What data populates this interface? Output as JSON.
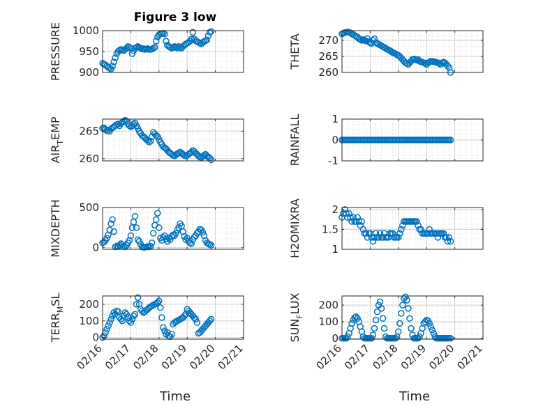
{
  "figure": {
    "title": "Figure 3 low",
    "xlabel": "Time",
    "xtick_labels": [
      "02/16",
      "02/17",
      "02/18",
      "02/19",
      "02/20",
      "02/21"
    ],
    "marker_color": "#0072BD"
  },
  "chart_data": [
    {
      "type": "scatter",
      "id": "pressure",
      "ylabel": "PRESSURE",
      "ylim": [
        900,
        1000
      ],
      "yticks": [
        900,
        950,
        1000
      ],
      "x": [
        0.0,
        0.05,
        0.1,
        0.15,
        0.2,
        0.25,
        0.3,
        0.35,
        0.4,
        0.45,
        0.5,
        0.55,
        0.6,
        0.65,
        0.7,
        0.75,
        0.8,
        0.85,
        0.9,
        0.95,
        1.0,
        1.05,
        1.1,
        1.15,
        1.2,
        1.25,
        1.3,
        1.35,
        1.4,
        1.45,
        1.5,
        1.55,
        1.6,
        1.65,
        1.7,
        1.75,
        1.8,
        1.85,
        1.9,
        1.95,
        2.0,
        2.05,
        2.1,
        2.15,
        2.2,
        2.25,
        2.3,
        2.35,
        2.4,
        2.45,
        2.5,
        2.55,
        2.6,
        2.65,
        2.7,
        2.75,
        2.8,
        2.85,
        2.9,
        2.95,
        3.0,
        3.05,
        3.1,
        3.15,
        3.2,
        3.25,
        3.3,
        3.35,
        3.4,
        3.45,
        3.5,
        3.55,
        3.6,
        3.65,
        3.7,
        3.75,
        3.8,
        3.85
      ],
      "y": [
        922,
        920,
        918,
        915,
        912,
        910,
        908,
        915,
        925,
        935,
        945,
        950,
        953,
        955,
        954,
        952,
        955,
        958,
        962,
        960,
        958,
        945,
        952,
        958,
        960,
        962,
        960,
        958,
        956,
        957,
        955,
        956,
        957,
        955,
        955,
        956,
        958,
        960,
        975,
        985,
        990,
        992,
        993,
        994,
        992,
        975,
        965,
        962,
        960,
        958,
        960,
        962,
        960,
        958,
        962,
        960,
        958,
        962,
        965,
        968,
        970,
        972,
        975,
        980,
        996,
        980,
        976,
        974,
        972,
        970,
        968,
        972,
        974,
        976,
        978,
        988,
        996,
        998
      ]
    },
    {
      "type": "scatter",
      "id": "theta",
      "ylabel": "THETA",
      "ylim": [
        260,
        273
      ],
      "yticks": [
        260,
        265,
        270
      ],
      "x": [
        0.0,
        0.05,
        0.1,
        0.15,
        0.2,
        0.25,
        0.3,
        0.35,
        0.4,
        0.45,
        0.5,
        0.55,
        0.6,
        0.65,
        0.7,
        0.75,
        0.8,
        0.85,
        0.9,
        0.95,
        1.0,
        1.05,
        1.1,
        1.15,
        1.2,
        1.25,
        1.3,
        1.35,
        1.4,
        1.45,
        1.5,
        1.55,
        1.6,
        1.65,
        1.7,
        1.75,
        1.8,
        1.85,
        1.9,
        1.95,
        2.0,
        2.05,
        2.1,
        2.15,
        2.2,
        2.25,
        2.3,
        2.35,
        2.4,
        2.45,
        2.5,
        2.55,
        2.6,
        2.65,
        2.7,
        2.75,
        2.8,
        2.85,
        2.9,
        2.95,
        3.0,
        3.05,
        3.1,
        3.15,
        3.2,
        3.25,
        3.3,
        3.35,
        3.4,
        3.45,
        3.5,
        3.55,
        3.6,
        3.65,
        3.7,
        3.75,
        3.8,
        3.85
      ],
      "y": [
        272.0,
        272.2,
        272.4,
        272.5,
        272.6,
        272.5,
        272.3,
        272.0,
        271.8,
        271.5,
        271.2,
        271.0,
        270.5,
        270.3,
        270.0,
        270.2,
        270.0,
        269.8,
        270.5,
        269.5,
        269.2,
        269.0,
        270.0,
        270.5,
        269.3,
        269.0,
        268.8,
        268.5,
        268.3,
        268.0,
        267.8,
        267.5,
        267.2,
        267.0,
        266.8,
        266.5,
        266.2,
        266.0,
        265.8,
        265.5,
        265.3,
        265.0,
        264.5,
        264.0,
        263.5,
        263.0,
        262.8,
        262.5,
        263.0,
        263.5,
        264.0,
        264.2,
        264.0,
        263.8,
        264.0,
        263.5,
        263.3,
        263.2,
        263.0,
        262.8,
        262.5,
        263.0,
        263.2,
        263.5,
        263.5,
        263.3,
        263.3,
        263.1,
        263.0,
        262.8,
        262.5,
        263.0,
        263.2,
        263.0,
        262.5,
        262.0,
        261.5,
        260.0
      ]
    },
    {
      "type": "scatter",
      "id": "air-temp",
      "ylabel_main": "AIR",
      "ylabel_sub": "T",
      "ylabel_tail": "EMP",
      "ylim": [
        259.6,
        267.2
      ],
      "yticks": [
        260,
        265
      ],
      "x": [
        0.0,
        0.05,
        0.1,
        0.15,
        0.2,
        0.25,
        0.3,
        0.35,
        0.4,
        0.45,
        0.5,
        0.55,
        0.6,
        0.65,
        0.7,
        0.75,
        0.8,
        0.85,
        0.9,
        0.95,
        1.0,
        1.05,
        1.1,
        1.15,
        1.2,
        1.25,
        1.3,
        1.35,
        1.4,
        1.45,
        1.5,
        1.55,
        1.6,
        1.65,
        1.7,
        1.75,
        1.8,
        1.85,
        1.9,
        1.95,
        2.0,
        2.05,
        2.1,
        2.15,
        2.2,
        2.25,
        2.3,
        2.35,
        2.4,
        2.45,
        2.5,
        2.55,
        2.6,
        2.65,
        2.7,
        2.75,
        2.8,
        2.85,
        2.9,
        2.95,
        3.0,
        3.05,
        3.1,
        3.15,
        3.2,
        3.25,
        3.3,
        3.35,
        3.4,
        3.45,
        3.5,
        3.55,
        3.6,
        3.65,
        3.7,
        3.75,
        3.8,
        3.85
      ],
      "y": [
        265.5,
        265.6,
        265.3,
        265.1,
        265.2,
        265.0,
        265.4,
        265.6,
        265.8,
        266.0,
        266.2,
        266.3,
        266.0,
        266.4,
        266.6,
        266.8,
        267.0,
        266.8,
        266.3,
        266.0,
        265.8,
        266.0,
        266.3,
        266.5,
        266.0,
        265.5,
        265.0,
        264.6,
        264.2,
        264.0,
        263.8,
        263.5,
        263.3,
        263.0,
        263.2,
        264.0,
        264.8,
        264.5,
        264.2,
        264.0,
        263.5,
        263.0,
        262.6,
        262.2,
        262.0,
        261.8,
        261.5,
        261.2,
        261.0,
        260.8,
        260.6,
        260.5,
        260.7,
        260.9,
        261.0,
        261.2,
        261.0,
        260.8,
        260.6,
        260.5,
        260.6,
        260.8,
        261.0,
        261.2,
        261.5,
        261.3,
        261.0,
        260.8,
        260.5,
        260.3,
        260.2,
        260.4,
        260.6,
        260.8,
        260.5,
        260.3,
        260.1,
        259.8
      ]
    },
    {
      "type": "scatter",
      "id": "rainfall",
      "ylabel": "RAINFALL",
      "ylim": [
        -1,
        1
      ],
      "yticks": [
        -1,
        0,
        1
      ],
      "x": [
        0.0,
        0.05,
        0.1,
        0.15,
        0.2,
        0.25,
        0.3,
        0.35,
        0.4,
        0.45,
        0.5,
        0.55,
        0.6,
        0.65,
        0.7,
        0.75,
        0.8,
        0.85,
        0.9,
        0.95,
        1.0,
        1.05,
        1.1,
        1.15,
        1.2,
        1.25,
        1.3,
        1.35,
        1.4,
        1.45,
        1.5,
        1.55,
        1.6,
        1.65,
        1.7,
        1.75,
        1.8,
        1.85,
        1.9,
        1.95,
        2.0,
        2.05,
        2.1,
        2.15,
        2.2,
        2.25,
        2.3,
        2.35,
        2.4,
        2.45,
        2.5,
        2.55,
        2.6,
        2.65,
        2.7,
        2.75,
        2.8,
        2.85,
        2.9,
        2.95,
        3.0,
        3.05,
        3.1,
        3.15,
        3.2,
        3.25,
        3.3,
        3.35,
        3.4,
        3.45,
        3.5,
        3.55,
        3.6,
        3.65,
        3.7,
        3.75,
        3.8,
        3.85
      ],
      "y": [
        0,
        0,
        0,
        0,
        0,
        0,
        0,
        0,
        0,
        0,
        0,
        0,
        0,
        0,
        0,
        0,
        0,
        0,
        0,
        0,
        0,
        0,
        0,
        0,
        0,
        0,
        0,
        0,
        0,
        0,
        0,
        0,
        0,
        0,
        0,
        0,
        0,
        0,
        0,
        0,
        0,
        0,
        0,
        0,
        0,
        0,
        0,
        0,
        0,
        0,
        0,
        0,
        0,
        0,
        0,
        0,
        0,
        0,
        0,
        0,
        0,
        0,
        0,
        0,
        0,
        0,
        0,
        0,
        0,
        0,
        0,
        0,
        0,
        0,
        0,
        0,
        0,
        0
      ]
    },
    {
      "type": "scatter",
      "id": "mixdepth",
      "ylabel": "MIXDEPTH",
      "ylim": [
        -20,
        500
      ],
      "yticks": [
        0,
        500
      ],
      "x": [
        0.0,
        0.05,
        0.1,
        0.15,
        0.2,
        0.25,
        0.3,
        0.35,
        0.4,
        0.45,
        0.5,
        0.55,
        0.6,
        0.65,
        0.7,
        0.75,
        0.8,
        0.85,
        0.9,
        0.95,
        1.0,
        1.05,
        1.1,
        1.15,
        1.2,
        1.25,
        1.3,
        1.35,
        1.4,
        1.45,
        1.5,
        1.55,
        1.6,
        1.65,
        1.7,
        1.75,
        1.8,
        1.85,
        1.9,
        1.95,
        2.0,
        2.05,
        2.1,
        2.15,
        2.2,
        2.25,
        2.3,
        2.35,
        2.4,
        2.45,
        2.5,
        2.55,
        2.6,
        2.65,
        2.7,
        2.75,
        2.8,
        2.85,
        2.9,
        2.95,
        3.0,
        3.05,
        3.1,
        3.15,
        3.2,
        3.25,
        3.3,
        3.35,
        3.4,
        3.45,
        3.5,
        3.55,
        3.6,
        3.65,
        3.7,
        3.75,
        3.8,
        3.85
      ],
      "y": [
        60,
        70,
        90,
        120,
        160,
        220,
        300,
        350,
        200,
        10,
        20,
        15,
        30,
        50,
        40,
        20,
        10,
        30,
        60,
        90,
        150,
        250,
        320,
        390,
        250,
        100,
        80,
        40,
        10,
        5,
        5,
        10,
        15,
        10,
        20,
        60,
        180,
        280,
        350,
        430,
        250,
        120,
        90,
        130,
        150,
        110,
        80,
        120,
        100,
        140,
        160,
        150,
        180,
        220,
        250,
        300,
        270,
        200,
        140,
        100,
        120,
        80,
        60,
        50,
        100,
        130,
        150,
        180,
        200,
        230,
        220,
        190,
        150,
        90,
        60,
        50,
        40,
        30
      ]
    },
    {
      "type": "scatter",
      "id": "h2omixra",
      "ylabel": "H2OMIXRA",
      "ylim": [
        1.0,
        2.05
      ],
      "yticks": [
        1,
        1.5,
        2
      ],
      "x": [
        0.0,
        0.05,
        0.1,
        0.15,
        0.2,
        0.25,
        0.3,
        0.35,
        0.4,
        0.45,
        0.5,
        0.55,
        0.6,
        0.65,
        0.7,
        0.75,
        0.8,
        0.85,
        0.9,
        0.95,
        1.0,
        1.05,
        1.1,
        1.15,
        1.2,
        1.25,
        1.3,
        1.35,
        1.4,
        1.45,
        1.5,
        1.55,
        1.6,
        1.65,
        1.7,
        1.75,
        1.8,
        1.85,
        1.9,
        1.95,
        2.0,
        2.05,
        2.1,
        2.15,
        2.2,
        2.25,
        2.3,
        2.35,
        2.4,
        2.45,
        2.5,
        2.55,
        2.6,
        2.65,
        2.7,
        2.75,
        2.8,
        2.85,
        2.9,
        2.95,
        3.0,
        3.05,
        3.1,
        3.15,
        3.2,
        3.25,
        3.3,
        3.35,
        3.4,
        3.45,
        3.5,
        3.55,
        3.6,
        3.65,
        3.7,
        3.75,
        3.8,
        3.85
      ],
      "y": [
        1.8,
        1.9,
        2.0,
        1.9,
        1.8,
        1.9,
        1.8,
        1.7,
        1.8,
        1.7,
        1.7,
        1.8,
        1.7,
        1.6,
        1.7,
        1.5,
        1.4,
        1.4,
        1.3,
        1.4,
        1.4,
        1.3,
        1.2,
        1.3,
        1.4,
        1.3,
        1.3,
        1.4,
        1.3,
        1.3,
        1.4,
        1.3,
        1.3,
        1.3,
        1.4,
        1.4,
        1.4,
        1.3,
        1.3,
        1.3,
        1.3,
        1.4,
        1.5,
        1.6,
        1.7,
        1.7,
        1.7,
        1.7,
        1.7,
        1.7,
        1.7,
        1.7,
        1.7,
        1.7,
        1.6,
        1.5,
        1.5,
        1.4,
        1.4,
        1.4,
        1.4,
        1.4,
        1.5,
        1.4,
        1.4,
        1.4,
        1.4,
        1.4,
        1.3,
        1.4,
        1.4,
        1.4,
        1.4,
        1.3,
        1.3,
        1.2,
        1.3,
        1.2
      ]
    },
    {
      "type": "scatter",
      "id": "terr-msl",
      "ylabel_main": "TERR",
      "ylabel_sub": "M",
      "ylabel_tail": "SL",
      "ylim": [
        -10,
        250
      ],
      "yticks": [
        0,
        100,
        200
      ],
      "x": [
        0.0,
        0.05,
        0.1,
        0.15,
        0.2,
        0.25,
        0.3,
        0.35,
        0.4,
        0.45,
        0.5,
        0.55,
        0.6,
        0.65,
        0.7,
        0.75,
        0.8,
        0.85,
        0.9,
        0.95,
        1.0,
        1.05,
        1.1,
        1.15,
        1.2,
        1.25,
        1.3,
        1.35,
        1.4,
        1.45,
        1.5,
        1.55,
        1.6,
        1.65,
        1.7,
        1.75,
        1.8,
        1.85,
        1.9,
        1.95,
        2.0,
        2.05,
        2.1,
        2.15,
        2.2,
        2.25,
        2.3,
        2.35,
        2.4,
        2.45,
        2.5,
        2.55,
        2.6,
        2.65,
        2.7,
        2.75,
        2.8,
        2.85,
        2.9,
        2.95,
        3.0,
        3.05,
        3.1,
        3.15,
        3.2,
        3.25,
        3.3,
        3.35,
        3.4,
        3.45,
        3.5,
        3.55,
        3.6,
        3.65,
        3.7,
        3.75,
        3.8,
        3.85
      ],
      "y": [
        0,
        10,
        30,
        50,
        70,
        90,
        110,
        130,
        150,
        140,
        160,
        155,
        120,
        110,
        100,
        130,
        150,
        140,
        120,
        100,
        90,
        110,
        130,
        140,
        200,
        240,
        200,
        170,
        160,
        150,
        155,
        165,
        170,
        180,
        185,
        190,
        195,
        200,
        205,
        210,
        220,
        180,
        120,
        60,
        40,
        20,
        30,
        10,
        5,
        20,
        80,
        90,
        95,
        100,
        105,
        110,
        115,
        120,
        130,
        140,
        170,
        160,
        150,
        140,
        130,
        120,
        110,
        90,
        25,
        30,
        40,
        50,
        60,
        70,
        80,
        90,
        100,
        110
      ]
    },
    {
      "type": "scatter",
      "id": "sun-flux",
      "ylabel_main": "SUN",
      "ylabel_sub": "F",
      "ylabel_tail": "LUX",
      "ylim": [
        -5,
        255
      ],
      "yticks": [
        0,
        100,
        200
      ],
      "x": [
        0.0,
        0.05,
        0.1,
        0.15,
        0.2,
        0.25,
        0.3,
        0.35,
        0.4,
        0.45,
        0.5,
        0.55,
        0.6,
        0.65,
        0.7,
        0.75,
        0.8,
        0.85,
        0.9,
        0.95,
        1.0,
        1.05,
        1.1,
        1.15,
        1.2,
        1.25,
        1.3,
        1.35,
        1.4,
        1.45,
        1.5,
        1.55,
        1.6,
        1.65,
        1.7,
        1.75,
        1.8,
        1.85,
        1.9,
        1.95,
        2.0,
        2.05,
        2.1,
        2.15,
        2.2,
        2.25,
        2.3,
        2.35,
        2.4,
        2.45,
        2.5,
        2.55,
        2.6,
        2.65,
        2.7,
        2.75,
        2.8,
        2.85,
        2.9,
        2.95,
        3.0,
        3.05,
        3.1,
        3.15,
        3.2,
        3.25,
        3.3,
        3.35,
        3.4,
        3.45,
        3.5,
        3.55,
        3.6,
        3.65,
        3.7,
        3.75,
        3.8,
        3.85
      ],
      "y": [
        0,
        0,
        0,
        0,
        10,
        30,
        60,
        90,
        110,
        125,
        130,
        120,
        100,
        70,
        40,
        10,
        0,
        0,
        0,
        0,
        0,
        0,
        20,
        60,
        110,
        160,
        200,
        220,
        180,
        120,
        60,
        10,
        0,
        0,
        0,
        0,
        0,
        0,
        0,
        10,
        40,
        90,
        150,
        200,
        240,
        250,
        230,
        180,
        120,
        60,
        20,
        0,
        0,
        0,
        0,
        10,
        30,
        60,
        90,
        100,
        110,
        105,
        90,
        70,
        50,
        30,
        10,
        0,
        0,
        0,
        0,
        0,
        0,
        0,
        0,
        0,
        0,
        0
      ]
    }
  ]
}
